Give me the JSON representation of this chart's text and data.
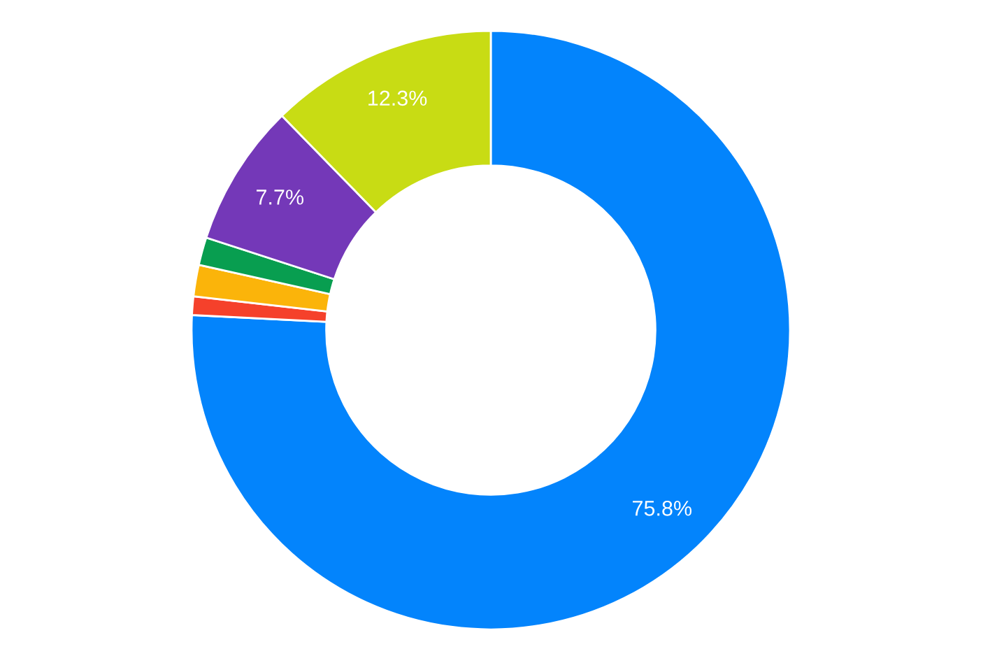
{
  "chart_data": {
    "type": "donut",
    "categories": [
      null,
      null,
      null,
      null,
      null,
      null
    ],
    "values": [
      75.8,
      1.0,
      1.7,
      1.5,
      7.7,
      12.3
    ],
    "colors": [
      "#0384fc",
      "#f5412b",
      "#fbb40a",
      "#089e50",
      "#7438b8",
      "#c8dc14"
    ],
    "value_labels": [
      "75.8%",
      null,
      null,
      null,
      "7.7%",
      "12.3%"
    ]
  }
}
